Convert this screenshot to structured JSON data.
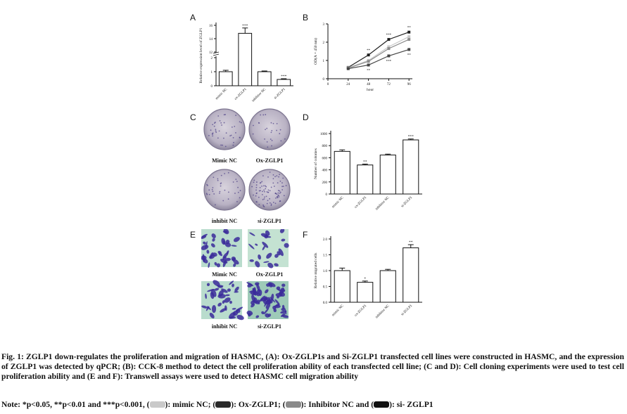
{
  "panels": {
    "A": "A",
    "B": "B",
    "C": "C",
    "D": "D",
    "E": "E",
    "F": "F"
  },
  "chart_data": [
    {
      "id": "A",
      "type": "bar",
      "ylabel": "Relative expression level of ZGLP1",
      "categories": [
        "mimic NC",
        "ox-ZGLP1",
        "inhibitor NC",
        "si-ZGLP1"
      ],
      "values": [
        1.0,
        14.8,
        1.0,
        0.45
      ],
      "errors": [
        0.1,
        0.8,
        0.05,
        0.05
      ],
      "significance": [
        "",
        "***",
        "",
        "***"
      ],
      "yticks": [
        "0",
        "1",
        "2",
        "12",
        "14",
        "16"
      ],
      "axis_break": true
    },
    {
      "id": "B",
      "type": "line",
      "ylabel": "OD(A = 450 nm)",
      "xlabel": "hour",
      "x": [
        0,
        24,
        48,
        72,
        96
      ],
      "xticks": [
        "0",
        "24",
        "48",
        "72",
        "96"
      ],
      "yticks": [
        "0",
        "1",
        "2",
        "3"
      ],
      "ylim": [
        0,
        3
      ],
      "series": [
        {
          "values": [
            null,
            0.62,
            1.3,
            2.15,
            2.55
          ],
          "significance": [
            "",
            "",
            "**",
            "***",
            "**"
          ]
        },
        {
          "values": [
            null,
            0.6,
            1.0,
            1.75,
            2.3
          ],
          "significance": [
            "",
            "",
            "",
            "",
            ""
          ]
        },
        {
          "values": [
            null,
            0.58,
            0.95,
            1.65,
            2.15
          ],
          "significance": [
            "",
            "",
            "",
            "",
            ""
          ]
        },
        {
          "values": [
            null,
            0.55,
            0.75,
            1.25,
            1.6
          ],
          "significance": [
            "",
            "",
            "**",
            "***",
            "**"
          ]
        }
      ]
    },
    {
      "id": "D",
      "type": "bar",
      "ylabel": "Number of colonies",
      "categories": [
        "mimic NC",
        "ox-ZGLP1",
        "inhibitor NC",
        "si-ZGLP1"
      ],
      "values": [
        705,
        480,
        645,
        895
      ],
      "errors": [
        25,
        15,
        15,
        15
      ],
      "significance": [
        "",
        "**",
        "",
        "***"
      ],
      "yticks": [
        "0",
        "200",
        "400",
        "600",
        "800",
        "1000"
      ],
      "ylim": [
        0,
        1000
      ]
    },
    {
      "id": "F",
      "type": "bar",
      "ylabel": "Relative migrated cells",
      "categories": [
        "mimic NC",
        "ox-ZGLP1",
        "inhibitor NC",
        "si-ZGLP1"
      ],
      "values": [
        1.0,
        0.63,
        1.0,
        1.72
      ],
      "errors": [
        0.08,
        0.04,
        0.04,
        0.1
      ],
      "significance": [
        "",
        "*",
        "",
        "**"
      ],
      "yticks": [
        "0.0",
        "0.5",
        "1.0",
        "1.5",
        "2.0"
      ],
      "ylim": [
        0,
        2.0
      ]
    }
  ],
  "panel_c": {
    "labels": [
      "Mimic NC",
      "Ox-ZGLP1",
      "inhibit NC",
      "si-ZGLP1"
    ]
  },
  "panel_e": {
    "labels": [
      "Mimic NC",
      "Ox-ZGLP1",
      "inhibit NC",
      "si-ZGLP1"
    ]
  },
  "caption": "Fig. 1: ZGLP1 down-regulates the proliferation and migration of HASMC, (A): Ox-ZGLP1s and Si-ZGLP1 transfected cell lines were constructed in HASMC, and the expression of ZGLP1 was detected by qPCR; (B): CCK-8 method to detect the cell proliferation ability of each transfected cell line; (C and D): Cell cloning experiments were used to test cell proliferation ability and (E and F): Transwell assays were used to detect HASMC cell migration ability",
  "note": {
    "prefix": "Note: *p<0.05, **p<0.01 and ***p<0.001, (",
    "items": [
      {
        "label": "): mimic NC; (",
        "color": "#c9c9c9"
      },
      {
        "label": "): Ox-ZGLP1; (",
        "color": "#2a2a2a"
      },
      {
        "label": "): Inhibitor NC and (",
        "color": "#8a8a8a"
      },
      {
        "label": "): si- ZGLP1",
        "color": "#111111"
      }
    ]
  }
}
